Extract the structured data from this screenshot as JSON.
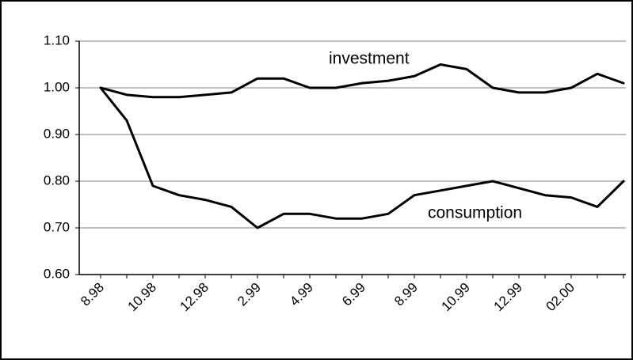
{
  "chart_data": {
    "type": "line",
    "categories": [
      "8.98",
      null,
      "10.98",
      null,
      "12.98",
      null,
      "2.99",
      null,
      "4.99",
      null,
      "6.99",
      null,
      "8.99",
      null,
      "10.99",
      null,
      "12.99",
      null,
      "02.00",
      null,
      null
    ],
    "series": [
      {
        "name": "investment",
        "color": "#000000",
        "values": [
          1.0,
          0.985,
          0.98,
          0.98,
          0.985,
          0.99,
          1.02,
          1.02,
          1.0,
          1.0,
          1.01,
          1.015,
          1.025,
          1.05,
          1.04,
          1.0,
          0.99,
          0.99,
          1.0,
          1.03,
          1.01
        ]
      },
      {
        "name": "consumption",
        "color": "#000000",
        "values": [
          1.0,
          0.93,
          0.79,
          0.77,
          0.76,
          0.745,
          0.7,
          0.73,
          0.73,
          0.72,
          0.72,
          0.73,
          0.77,
          0.78,
          0.79,
          0.8,
          0.785,
          0.77,
          0.765,
          0.745,
          0.8
        ]
      }
    ],
    "ylim": [
      0.6,
      1.1
    ],
    "yticks": [
      {
        "value": 0.6,
        "label": "0.60"
      },
      {
        "value": 0.7,
        "label": "0.70"
      },
      {
        "value": 0.8,
        "label": "0.80"
      },
      {
        "value": 0.9,
        "label": "0.90"
      },
      {
        "value": 1.0,
        "label": "1.00"
      },
      {
        "value": 1.1,
        "label": "1.10"
      }
    ],
    "grid": true
  }
}
